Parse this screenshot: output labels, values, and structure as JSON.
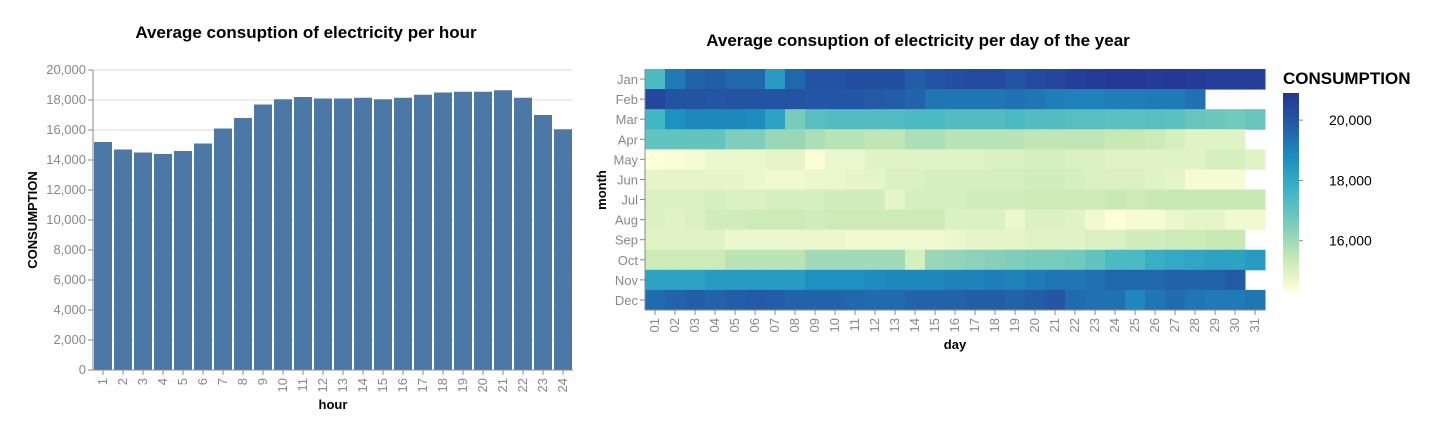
{
  "chart_data": [
    {
      "type": "bar",
      "title": "Average consuption of electricity per hour",
      "xlabel": "hour",
      "ylabel": "CONSUMPTION",
      "ylim": [
        0,
        20000
      ],
      "yticks": [
        "0",
        "2,000",
        "4,000",
        "6,000",
        "8,000",
        "10,000",
        "12,000",
        "14,000",
        "16,000",
        "18,000",
        "20,000"
      ],
      "grid": true,
      "categories": [
        "1",
        "2",
        "3",
        "4",
        "5",
        "6",
        "7",
        "8",
        "9",
        "10",
        "11",
        "12",
        "13",
        "14",
        "15",
        "16",
        "17",
        "18",
        "19",
        "20",
        "21",
        "22",
        "23",
        "24"
      ],
      "values": [
        15200,
        14700,
        14500,
        14400,
        14600,
        15100,
        16100,
        16800,
        17700,
        18050,
        18200,
        18100,
        18100,
        18150,
        18050,
        18150,
        18350,
        18500,
        18550,
        18550,
        18650,
        18150,
        17000,
        16050
      ],
      "color": "#4c78a8"
    },
    {
      "type": "heatmap",
      "title": "Average consuption of electricity per day of the year",
      "xlabel": "day",
      "ylabel": "month",
      "x": [
        "01",
        "02",
        "03",
        "04",
        "05",
        "06",
        "07",
        "08",
        "09",
        "10",
        "11",
        "12",
        "13",
        "14",
        "15",
        "16",
        "17",
        "18",
        "19",
        "20",
        "21",
        "22",
        "23",
        "24",
        "25",
        "26",
        "27",
        "28",
        "29",
        "30",
        "31"
      ],
      "y": [
        "Jan",
        "Feb",
        "Mar",
        "Apr",
        "May",
        "Jun",
        "Jul",
        "Aug",
        "Sep",
        "Oct",
        "Nov",
        "Dec"
      ],
      "legend_title": "CONSUMPTION",
      "legend_ticks": [
        "20,000",
        "18,000",
        "16,000"
      ],
      "legend_domain": [
        14300,
        20900
      ],
      "legend_placement": "right",
      "color_scheme": [
        "#ffffd9",
        "#c7e9b4",
        "#7fcdbb",
        "#41b6c4",
        "#1d91c0",
        "#225ea8",
        "#253494"
      ],
      "values": [
        [
          17400,
          19200,
          19700,
          19800,
          19600,
          19600,
          18400,
          19600,
          20100,
          20100,
          20200,
          20200,
          20200,
          19800,
          20100,
          20200,
          20300,
          20300,
          20100,
          20300,
          20400,
          20600,
          20700,
          20800,
          20800,
          20700,
          20800,
          20700,
          20600,
          20600,
          20600
        ],
        [
          20400,
          20100,
          20100,
          20000,
          20100,
          20100,
          20100,
          20100,
          20000,
          20000,
          20000,
          19900,
          19800,
          19700,
          19300,
          19300,
          19300,
          19300,
          19400,
          19300,
          19100,
          19000,
          19000,
          19100,
          19100,
          19200,
          19200,
          19400,
          null,
          null,
          null
        ],
        [
          17600,
          18700,
          18900,
          18900,
          18900,
          18800,
          18200,
          16600,
          17200,
          17300,
          17300,
          17300,
          17300,
          17400,
          17400,
          17300,
          17300,
          17300,
          17400,
          17300,
          17300,
          17200,
          17200,
          17100,
          17100,
          17200,
          17100,
          16900,
          16800,
          16700,
          16900
        ],
        [
          17000,
          17000,
          17000,
          17000,
          16500,
          16500,
          16100,
          16100,
          15800,
          15600,
          15600,
          15500,
          15500,
          15800,
          15800,
          15600,
          15600,
          15600,
          15600,
          15500,
          15500,
          15500,
          15500,
          15400,
          15400,
          15300,
          15100,
          14900,
          14900,
          14900,
          null
        ],
        [
          14300,
          14400,
          14500,
          14700,
          14700,
          14700,
          14800,
          14800,
          14400,
          14700,
          14700,
          14900,
          14900,
          14900,
          14900,
          14900,
          14900,
          15000,
          15000,
          15100,
          15100,
          15000,
          15000,
          14900,
          14900,
          14900,
          14900,
          14900,
          15100,
          15100,
          14900
        ],
        [
          14800,
          14800,
          14800,
          14800,
          14800,
          14700,
          14600,
          14600,
          14700,
          14700,
          14800,
          14800,
          15000,
          15000,
          15100,
          15100,
          15100,
          15100,
          15100,
          15200,
          15200,
          15100,
          15000,
          15000,
          15000,
          14900,
          14800,
          14500,
          14500,
          14500,
          null
        ],
        [
          15000,
          15000,
          15000,
          15100,
          15000,
          15000,
          15100,
          15100,
          15100,
          15200,
          15200,
          15200,
          14800,
          15100,
          15100,
          15100,
          15200,
          15200,
          15200,
          15300,
          15300,
          15300,
          15300,
          15400,
          15300,
          15400,
          15400,
          15400,
          15400,
          15400,
          15400
        ],
        [
          15000,
          14900,
          15000,
          15200,
          15200,
          15300,
          15300,
          15300,
          15200,
          15300,
          15300,
          15300,
          15300,
          15300,
          15300,
          15000,
          15000,
          15000,
          14700,
          15000,
          15000,
          14900,
          14600,
          14300,
          14500,
          14500,
          14700,
          14800,
          14800,
          14600,
          14600
        ],
        [
          14900,
          14900,
          14900,
          14900,
          14700,
          14700,
          14700,
          14700,
          14700,
          14700,
          14600,
          14600,
          14600,
          14600,
          14600,
          14700,
          14800,
          14800,
          14800,
          14900,
          14900,
          14900,
          15000,
          15000,
          15200,
          15200,
          15300,
          15300,
          15400,
          15400,
          null
        ],
        [
          15300,
          15300,
          15300,
          15300,
          15600,
          15600,
          15600,
          15600,
          16000,
          16000,
          16000,
          16000,
          16000,
          15100,
          16100,
          16200,
          16300,
          16400,
          16500,
          16600,
          16600,
          16700,
          17000,
          17400,
          17400,
          17800,
          18000,
          18100,
          18200,
          18200,
          18400
        ],
        [
          18200,
          18200,
          18200,
          18400,
          18400,
          18400,
          18400,
          18400,
          18700,
          18700,
          18700,
          18800,
          18900,
          18900,
          18900,
          19000,
          19000,
          19100,
          19000,
          19200,
          19300,
          19300,
          19400,
          19600,
          19600,
          19600,
          19700,
          19700,
          19700,
          19900,
          null
        ],
        [
          19500,
          19700,
          19800,
          19700,
          19800,
          19900,
          19800,
          19700,
          19700,
          19700,
          19600,
          19500,
          19500,
          19700,
          19700,
          19700,
          19800,
          19800,
          19700,
          19800,
          20000,
          19500,
          19400,
          19400,
          18900,
          19300,
          19500,
          19300,
          19200,
          19200,
          19300
        ]
      ]
    }
  ]
}
